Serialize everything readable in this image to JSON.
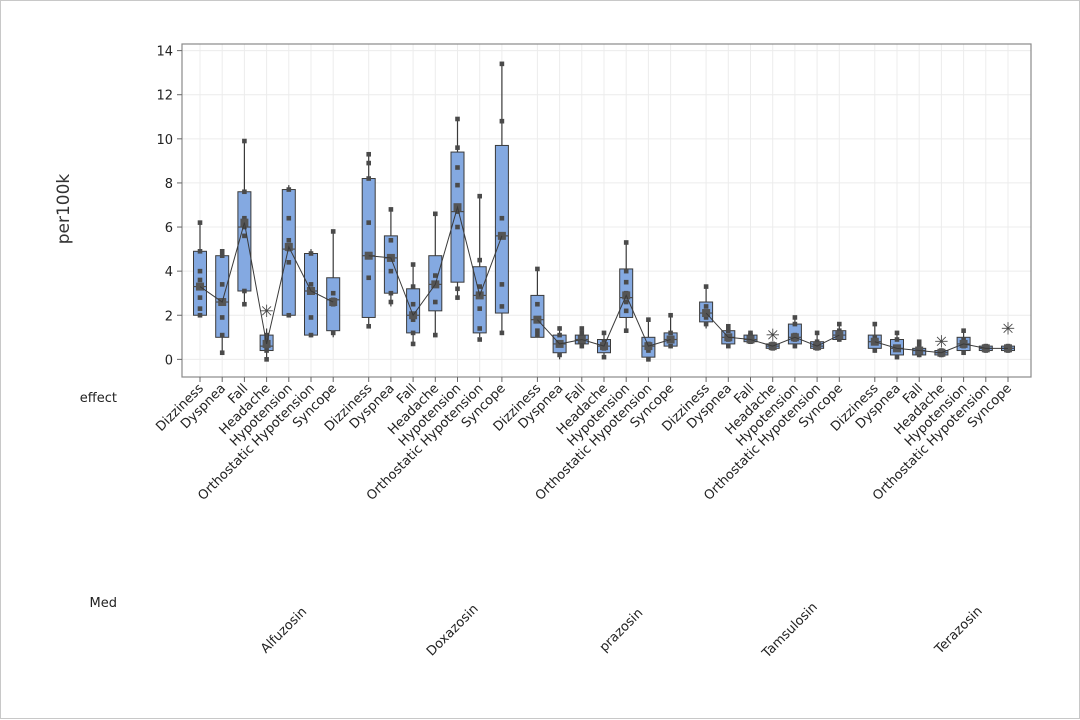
{
  "chart_data": {
    "type": "boxplot",
    "ylabel": "per100k",
    "ylim": [
      -0.8,
      14.3
    ],
    "yticks": [
      0,
      2,
      4,
      6,
      8,
      10,
      12,
      14
    ],
    "grid": true,
    "row_labels": [
      "effect",
      "Med"
    ],
    "effects": [
      "Dizziness",
      "Dyspnea",
      "Fall",
      "Headache",
      "Hypotension",
      "Orthostatic Hypotension",
      "Syncope"
    ],
    "colors": {
      "box": "#84a9e1",
      "box_stroke": "#3a3a3a",
      "median": "#4a4a4a",
      "mean_line": "#3a3a3a",
      "point": "#4a4a4a",
      "grid": "#ececec",
      "frame": "#8a8a8a"
    },
    "groups": [
      {
        "med": "Alfuzosin",
        "boxes": [
          {
            "effect": "Dizziness",
            "whisker_low": 1.9,
            "q1": 2.0,
            "median": 3.3,
            "q3": 4.9,
            "whisker_high": 6.2,
            "mean": 3.3,
            "points": [
              2.0,
              2.3,
              2.8,
              3.3,
              3.6,
              4.0,
              4.9,
              6.2
            ]
          },
          {
            "effect": "Dyspnea",
            "whisker_low": 0.3,
            "q1": 1.0,
            "median": 2.6,
            "q3": 4.7,
            "whisker_high": 4.9,
            "mean": 2.6,
            "points": [
              0.3,
              1.1,
              1.9,
              2.6,
              3.4,
              4.7,
              4.9
            ]
          },
          {
            "effect": "Fall",
            "whisker_low": 2.5,
            "q1": 3.1,
            "median": 6.0,
            "q3": 7.6,
            "whisker_high": 9.9,
            "mean": 6.2,
            "points": [
              2.5,
              3.1,
              5.6,
              6.0,
              6.4,
              7.6,
              9.9
            ]
          },
          {
            "effect": "Headache",
            "whisker_low": 0.0,
            "q1": 0.4,
            "median": 0.6,
            "q3": 1.1,
            "whisker_high": 1.4,
            "mean": 0.7,
            "points": [
              0.0,
              0.4,
              0.6,
              0.9,
              1.1
            ],
            "outliers": [
              2.2
            ]
          },
          {
            "effect": "Hypotension",
            "whisker_low": 1.9,
            "q1": 2.0,
            "median": 5.0,
            "q3": 7.7,
            "whisker_high": 7.9,
            "mean": 5.1,
            "points": [
              2.0,
              4.4,
              5.0,
              5.4,
              6.4,
              7.7
            ]
          },
          {
            "effect": "Orthostatic Hypotension",
            "whisker_low": 1.0,
            "q1": 1.1,
            "median": 3.1,
            "q3": 4.8,
            "whisker_high": 5.0,
            "mean": 3.1,
            "points": [
              1.1,
              1.9,
              3.1,
              3.4,
              4.8
            ]
          },
          {
            "effect": "Syncope",
            "whisker_low": 1.0,
            "q1": 1.3,
            "median": 2.7,
            "q3": 3.7,
            "whisker_high": 5.8,
            "mean": 2.6,
            "points": [
              1.2,
              2.5,
              2.7,
              3.0,
              5.8
            ]
          }
        ]
      },
      {
        "med": "Doxazosin",
        "boxes": [
          {
            "effect": "Dizziness",
            "whisker_low": 1.5,
            "q1": 1.9,
            "median": 4.7,
            "q3": 8.2,
            "whisker_high": 9.3,
            "mean": 4.7,
            "points": [
              1.5,
              3.7,
              4.7,
              6.2,
              8.2,
              8.9,
              9.3
            ]
          },
          {
            "effect": "Dyspnea",
            "whisker_low": 2.4,
            "q1": 3.0,
            "median": 4.6,
            "q3": 5.6,
            "whisker_high": 6.8,
            "mean": 4.6,
            "points": [
              2.6,
              3.0,
              4.0,
              4.6,
              5.4,
              6.8
            ]
          },
          {
            "effect": "Fall",
            "whisker_low": 0.6,
            "q1": 1.2,
            "median": 2.0,
            "q3": 3.2,
            "whisker_high": 4.3,
            "mean": 2.0,
            "points": [
              0.7,
              1.2,
              1.8,
              2.0,
              2.5,
              3.3,
              4.3
            ]
          },
          {
            "effect": "Headache",
            "whisker_low": 1.1,
            "q1": 2.2,
            "median": 3.4,
            "q3": 4.7,
            "whisker_high": 6.6,
            "mean": 3.4,
            "points": [
              1.1,
              2.6,
              3.4,
              3.8,
              6.6
            ]
          },
          {
            "effect": "Hypotension",
            "whisker_low": 2.7,
            "q1": 3.5,
            "median": 6.7,
            "q3": 9.4,
            "whisker_high": 10.9,
            "mean": 6.9,
            "points": [
              2.8,
              3.2,
              6.0,
              6.7,
              7.9,
              8.7,
              9.6,
              10.9
            ]
          },
          {
            "effect": "Orthostatic Hypotension",
            "whisker_low": 1.0,
            "q1": 1.2,
            "median": 2.9,
            "q3": 4.2,
            "whisker_high": 7.4,
            "mean": 2.9,
            "points": [
              0.9,
              1.4,
              2.3,
              2.9,
              3.3,
              4.5,
              7.4
            ]
          },
          {
            "effect": "Syncope",
            "whisker_low": 1.2,
            "q1": 2.1,
            "median": 5.6,
            "q3": 9.7,
            "whisker_high": 13.4,
            "mean": 5.6,
            "points": [
              1.2,
              2.4,
              3.4,
              5.6,
              6.4,
              10.8,
              13.4
            ]
          }
        ]
      },
      {
        "med": "prazosin",
        "boxes": [
          {
            "effect": "Dizziness",
            "whisker_low": 1.0,
            "q1": 1.0,
            "median": 1.8,
            "q3": 2.9,
            "whisker_high": 4.1,
            "mean": 1.8,
            "points": [
              1.1,
              1.3,
              1.8,
              2.5,
              4.1
            ]
          },
          {
            "effect": "Dyspnea",
            "whisker_low": 0.0,
            "q1": 0.3,
            "median": 0.7,
            "q3": 1.1,
            "whisker_high": 1.5,
            "mean": 0.7,
            "points": [
              0.2,
              0.7,
              1.1,
              1.4
            ]
          },
          {
            "effect": "Fall",
            "whisker_low": 0.5,
            "q1": 0.7,
            "median": 0.9,
            "q3": 1.1,
            "whisker_high": 1.4,
            "mean": 0.9,
            "points": [
              0.6,
              0.9,
              1.2,
              1.4
            ]
          },
          {
            "effect": "Headache",
            "whisker_low": 0.0,
            "q1": 0.3,
            "median": 0.6,
            "q3": 0.9,
            "whisker_high": 1.2,
            "mean": 0.6,
            "points": [
              0.1,
              0.5,
              0.8,
              1.2
            ]
          },
          {
            "effect": "Hypotension",
            "whisker_low": 1.3,
            "q1": 1.9,
            "median": 2.8,
            "q3": 4.1,
            "whisker_high": 5.3,
            "mean": 2.9,
            "points": [
              1.3,
              2.2,
              2.6,
              3.0,
              3.5,
              4.0,
              5.3
            ]
          },
          {
            "effect": "Orthostatic Hypotension",
            "whisker_low": 0.0,
            "q1": 0.1,
            "median": 0.6,
            "q3": 1.0,
            "whisker_high": 1.8,
            "mean": 0.6,
            "points": [
              0.0,
              0.4,
              0.7,
              1.8
            ]
          },
          {
            "effect": "Syncope",
            "whisker_low": 0.5,
            "q1": 0.6,
            "median": 0.9,
            "q3": 1.2,
            "whisker_high": 2.0,
            "mean": 0.9,
            "points": [
              0.6,
              0.9,
              1.2,
              2.0
            ]
          }
        ]
      },
      {
        "med": "Tamsulosin",
        "boxes": [
          {
            "effect": "Dizziness",
            "whisker_low": 1.4,
            "q1": 1.7,
            "median": 2.1,
            "q3": 2.6,
            "whisker_high": 3.3,
            "mean": 2.1,
            "points": [
              1.6,
              1.9,
              2.1,
              2.4,
              3.3
            ]
          },
          {
            "effect": "Dyspnea",
            "whisker_low": 0.6,
            "q1": 0.7,
            "median": 1.0,
            "q3": 1.3,
            "whisker_high": 1.5,
            "mean": 1.0,
            "points": [
              0.6,
              0.9,
              1.3,
              1.5
            ]
          },
          {
            "effect": "Fall",
            "whisker_low": 0.7,
            "q1": 0.8,
            "median": 0.9,
            "q3": 1.1,
            "whisker_high": 1.3,
            "mean": 0.9,
            "points": [
              0.8,
              0.9,
              1.1,
              1.2
            ]
          },
          {
            "effect": "Headache",
            "whisker_low": 0.4,
            "q1": 0.5,
            "median": 0.6,
            "q3": 0.7,
            "whisker_high": 0.8,
            "mean": 0.6,
            "points": [
              0.5,
              0.6,
              0.7
            ],
            "outliers": [
              1.1
            ]
          },
          {
            "effect": "Hypotension",
            "whisker_low": 0.5,
            "q1": 0.7,
            "median": 1.0,
            "q3": 1.6,
            "whisker_high": 1.9,
            "mean": 1.0,
            "points": [
              0.6,
              0.9,
              1.1,
              1.6,
              1.9
            ]
          },
          {
            "effect": "Orthostatic Hypotension",
            "whisker_low": 0.4,
            "q1": 0.5,
            "median": 0.6,
            "q3": 0.8,
            "whisker_high": 1.2,
            "mean": 0.6,
            "points": [
              0.5,
              0.6,
              0.8,
              1.2
            ]
          },
          {
            "effect": "Syncope",
            "whisker_low": 0.8,
            "q1": 0.9,
            "median": 1.1,
            "q3": 1.3,
            "whisker_high": 1.6,
            "mean": 1.1,
            "points": [
              0.9,
              1.1,
              1.3,
              1.6
            ]
          }
        ]
      },
      {
        "med": "Terazosin",
        "boxes": [
          {
            "effect": "Dizziness",
            "whisker_low": 0.3,
            "q1": 0.5,
            "median": 0.8,
            "q3": 1.1,
            "whisker_high": 1.6,
            "mean": 0.8,
            "points": [
              0.4,
              0.8,
              1.0,
              1.6
            ]
          },
          {
            "effect": "Dyspnea",
            "whisker_low": 0.0,
            "q1": 0.2,
            "median": 0.5,
            "q3": 0.9,
            "whisker_high": 1.2,
            "mean": 0.5,
            "points": [
              0.1,
              0.5,
              0.9,
              1.2
            ]
          },
          {
            "effect": "Fall",
            "whisker_low": 0.1,
            "q1": 0.2,
            "median": 0.4,
            "q3": 0.5,
            "whisker_high": 0.8,
            "mean": 0.4,
            "points": [
              0.2,
              0.4,
              0.6,
              0.8
            ]
          },
          {
            "effect": "Headache",
            "whisker_low": 0.1,
            "q1": 0.2,
            "median": 0.3,
            "q3": 0.4,
            "whisker_high": 0.5,
            "mean": 0.3,
            "points": [
              0.2,
              0.3,
              0.4
            ],
            "outliers": [
              0.8
            ]
          },
          {
            "effect": "Hypotension",
            "whisker_low": 0.2,
            "q1": 0.4,
            "median": 0.7,
            "q3": 1.0,
            "whisker_high": 1.3,
            "mean": 0.7,
            "points": [
              0.3,
              0.6,
              0.9,
              1.3
            ]
          },
          {
            "effect": "Orthostatic Hypotension",
            "whisker_low": 0.3,
            "q1": 0.4,
            "median": 0.5,
            "q3": 0.6,
            "whisker_high": 0.7,
            "mean": 0.5,
            "points": [
              0.4,
              0.5,
              0.6
            ]
          },
          {
            "effect": "Syncope",
            "whisker_low": 0.3,
            "q1": 0.4,
            "median": 0.5,
            "q3": 0.6,
            "whisker_high": 0.7,
            "mean": 0.5,
            "points": [
              0.4,
              0.5,
              0.6
            ],
            "outliers": [
              1.4
            ]
          }
        ]
      }
    ]
  }
}
